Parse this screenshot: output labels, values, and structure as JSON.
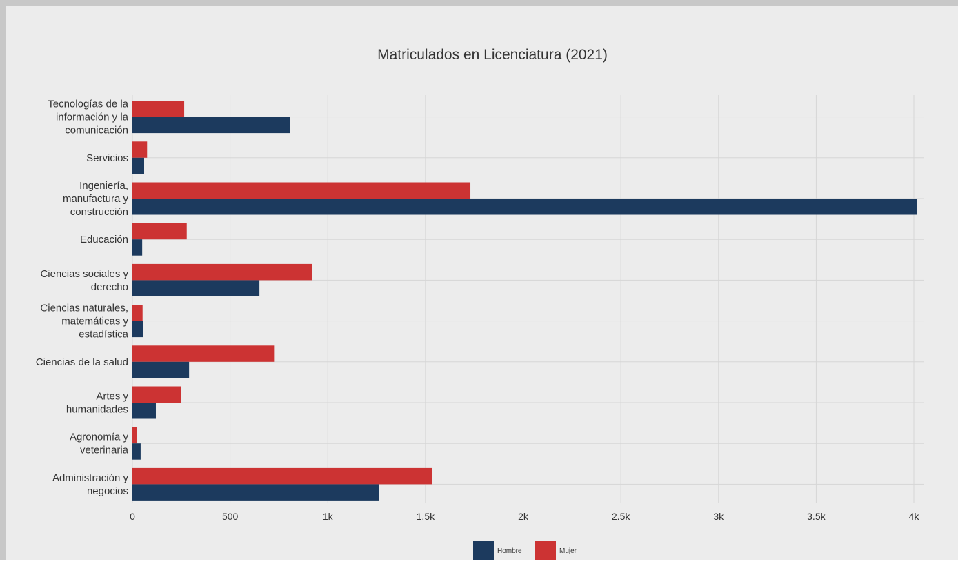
{
  "chart_data": {
    "type": "bar",
    "orientation": "horizontal",
    "title": "Matriculados en Licenciatura (2021)",
    "categories": [
      "Tecnologías de la información y la comunicación",
      "Servicios",
      "Ingeniería, manufactura y construcción",
      "Educación",
      "Ciencias sociales y derecho",
      "Ciencias naturales, matemáticas y estadística",
      "Ciencias de la salud",
      "Artes y humanidades",
      "Agronomía y veterinaria",
      "Administración y negocios"
    ],
    "category_lines": [
      [
        "Tecnologías de la",
        "información y la",
        "comunicación"
      ],
      [
        "Servicios"
      ],
      [
        "Ingeniería,",
        "manufactura y",
        "construcción"
      ],
      [
        "Educación"
      ],
      [
        "Ciencias sociales y",
        "derecho"
      ],
      [
        "Ciencias naturales,",
        "matemáticas y",
        "estadística"
      ],
      [
        "Ciencias de la salud"
      ],
      [
        "Artes y",
        "humanidades"
      ],
      [
        "Agronomía y",
        "veterinaria"
      ],
      [
        "Administración y",
        "negocios"
      ]
    ],
    "series": [
      {
        "name": "Hombre",
        "color": "#1c3a5e",
        "values": [
          805,
          60,
          4015,
          50,
          650,
          55,
          290,
          120,
          42,
          1262
        ]
      },
      {
        "name": "Mujer",
        "color": "#cc3333",
        "values": [
          265,
          75,
          1730,
          278,
          918,
          52,
          725,
          248,
          22,
          1535
        ]
      }
    ],
    "xlim": [
      0,
      4050
    ],
    "xticks": [
      0,
      500,
      1000,
      1500,
      2000,
      2500,
      3000,
      3500,
      4000
    ],
    "xtick_labels": [
      "0",
      "500",
      "1k",
      "1.5k",
      "2k",
      "2.5k",
      "3k",
      "3.5k",
      "4k"
    ],
    "grid": true,
    "legend_position": "bottom-center"
  }
}
